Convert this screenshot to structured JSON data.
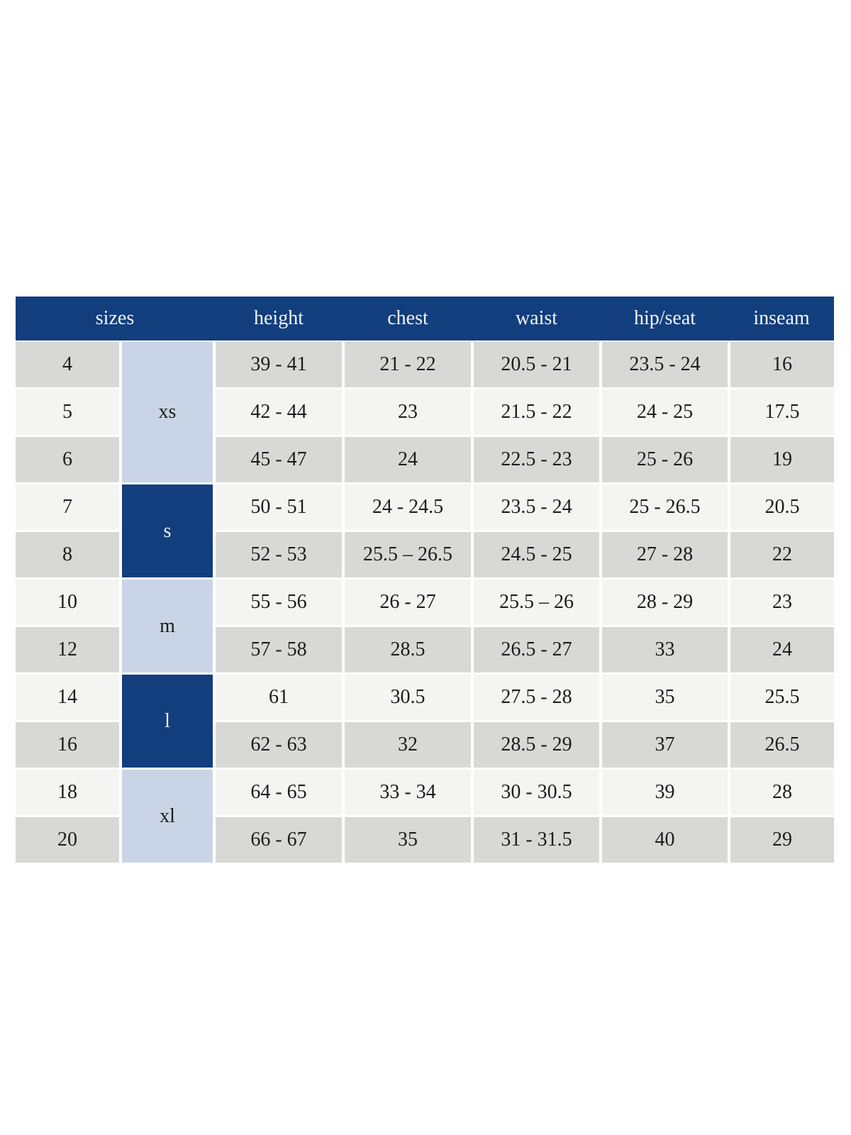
{
  "table": {
    "header": {
      "sizes_label": "sizes",
      "columns": [
        "height",
        "chest",
        "waist",
        "hip/seat",
        "inseam"
      ]
    },
    "groups": [
      {
        "label": "xs",
        "rows": 3,
        "style": "light"
      },
      {
        "label": "s",
        "rows": 2,
        "style": "dark"
      },
      {
        "label": "m",
        "rows": 2,
        "style": "light"
      },
      {
        "label": "l",
        "rows": 2,
        "style": "dark"
      },
      {
        "label": "xl",
        "rows": 2,
        "style": "light"
      }
    ],
    "rows": [
      {
        "size": "4",
        "height": "39 - 41",
        "chest": "21 - 22",
        "waist": "20.5 - 21",
        "hip_seat": "23.5 - 24",
        "inseam": "16"
      },
      {
        "size": "5",
        "height": "42 - 44",
        "chest": "23",
        "waist": "21.5 - 22",
        "hip_seat": "24 - 25",
        "inseam": "17.5"
      },
      {
        "size": "6",
        "height": "45 - 47",
        "chest": "24",
        "waist": "22.5 - 23",
        "hip_seat": "25 - 26",
        "inseam": "19"
      },
      {
        "size": "7",
        "height": "50 - 51",
        "chest": "24 - 24.5",
        "waist": "23.5 - 24",
        "hip_seat": "25 - 26.5",
        "inseam": "20.5"
      },
      {
        "size": "8",
        "height": "52 - 53",
        "chest": "25.5 – 26.5",
        "waist": "24.5 - 25",
        "hip_seat": "27 - 28",
        "inseam": "22"
      },
      {
        "size": "10",
        "height": "55 - 56",
        "chest": "26 - 27",
        "waist": "25.5 – 26",
        "hip_seat": "28 - 29",
        "inseam": "23"
      },
      {
        "size": "12",
        "height": "57 - 58",
        "chest": "28.5",
        "waist": "26.5 - 27",
        "hip_seat": "33",
        "inseam": "24"
      },
      {
        "size": "14",
        "height": "61",
        "chest": "30.5",
        "waist": "27.5 - 28",
        "hip_seat": "35",
        "inseam": "25.5"
      },
      {
        "size": "16",
        "height": "62 - 63",
        "chest": "32",
        "waist": "28.5 - 29",
        "hip_seat": "37",
        "inseam": "26.5"
      },
      {
        "size": "18",
        "height": "64 - 65",
        "chest": "33 - 34",
        "waist": "30 - 30.5",
        "hip_seat": "39",
        "inseam": "28"
      },
      {
        "size": "20",
        "height": "66 - 67",
        "chest": "35",
        "waist": "31 - 31.5",
        "hip_seat": "40",
        "inseam": "29"
      }
    ],
    "colors": {
      "header_blue": "#123e7d",
      "group_dark_blue": "#123e7d",
      "group_light_blue": "#c9d5e6",
      "row_gray": "#d8d8d7",
      "row_light": "#f4f4f2",
      "header_text": "#f3f4f8",
      "text_dark": "#1c1c1c",
      "gap_white": "#ffffff"
    }
  }
}
